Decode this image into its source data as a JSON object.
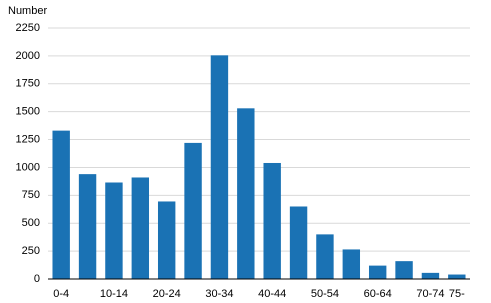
{
  "chart_data": {
    "type": "bar",
    "y_axis_label": "Number",
    "categories": [
      "0-4",
      null,
      "10-14",
      null,
      "20-24",
      null,
      "30-34",
      null,
      "40-44",
      null,
      "50-54",
      null,
      "60-64",
      null,
      "70-74",
      "75-"
    ],
    "values": [
      1330,
      940,
      865,
      910,
      695,
      1220,
      2005,
      1530,
      1040,
      650,
      400,
      265,
      120,
      160,
      55,
      40
    ],
    "color": "#1a72b4",
    "ylim": [
      0,
      2250
    ],
    "yticks": [
      0,
      250,
      500,
      750,
      1000,
      1250,
      1500,
      1750,
      2000,
      2250
    ],
    "grid": true
  }
}
